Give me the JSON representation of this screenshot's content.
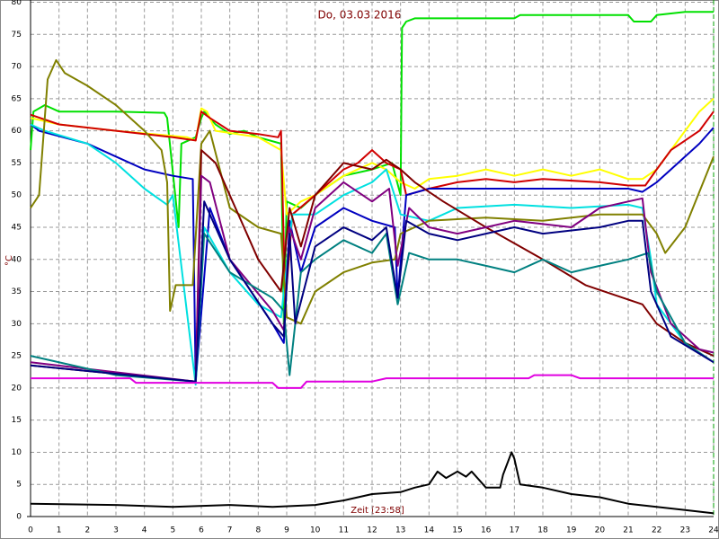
{
  "chart_data": {
    "type": "line",
    "title": "Do, 03.03.2016",
    "xlabel": "Zeit [23:58]",
    "ylabel": "°C",
    "xlim": [
      0,
      24
    ],
    "ylim": [
      0,
      80
    ],
    "xticks": [
      0,
      1,
      2,
      3,
      4,
      5,
      6,
      7,
      8,
      9,
      10,
      11,
      12,
      13,
      14,
      15,
      16,
      17,
      18,
      19,
      20,
      21,
      22,
      23,
      24
    ],
    "yticks": [
      0,
      5,
      10,
      15,
      20,
      25,
      30,
      35,
      40,
      45,
      50,
      55,
      60,
      65,
      70,
      75,
      80
    ],
    "grid": true,
    "series": [
      {
        "color": "#00e000",
        "x": [
          0,
          0.1,
          0.5,
          1,
          3,
          4.7,
          4.8,
          5.2,
          5.3,
          5.8,
          6,
          6.1,
          6.5,
          7,
          7.5,
          8,
          8.8,
          8.9,
          9,
          9.5,
          10,
          11,
          12,
          12.7,
          13,
          13.05,
          13.2,
          13.5,
          17,
          17.2,
          21,
          21.2,
          21.8,
          22,
          23,
          24
        ],
        "values": [
          57,
          63,
          64,
          63,
          63,
          62.8,
          62,
          45,
          58,
          59,
          62,
          63,
          61,
          59.5,
          60,
          59,
          58,
          30,
          49,
          48,
          50,
          53,
          54,
          55,
          50,
          76,
          77,
          77.5,
          77.5,
          78,
          78,
          77,
          77,
          78,
          78.5,
          78.5
        ]
      },
      {
        "color": "#ffff00",
        "x": [
          0,
          1,
          3,
          5.5,
          5.8,
          6,
          6.2,
          6.5,
          8,
          8.8,
          9,
          9.5,
          10,
          11,
          12,
          12.5,
          13,
          13.5,
          14,
          15,
          16,
          17,
          18,
          19,
          20,
          21,
          21.5,
          22,
          22.5,
          23,
          23.5,
          24
        ],
        "values": [
          62,
          61,
          60,
          59,
          58.5,
          63.5,
          63,
          60,
          59,
          57,
          47,
          49,
          50,
          53,
          55,
          54,
          52,
          51,
          52.5,
          53,
          54,
          53,
          54,
          53,
          54,
          52.5,
          52.5,
          54,
          57,
          60,
          63,
          65
        ]
      },
      {
        "color": "#d00000",
        "x": [
          0,
          1,
          3,
          5,
          5.8,
          6,
          6.3,
          7,
          8,
          8.7,
          8.8,
          8.95,
          9.2,
          10,
          11,
          11.5,
          12,
          12.5,
          13,
          13.2,
          14,
          15,
          16,
          17,
          18,
          20,
          21,
          21.6,
          22,
          22.5,
          23.5,
          24
        ],
        "values": [
          62.5,
          61,
          60,
          59,
          58.5,
          63,
          62,
          60,
          59.5,
          59,
          60,
          33,
          47,
          50,
          54,
          55,
          57,
          55,
          54,
          50,
          51,
          52,
          52.5,
          52,
          52.5,
          52,
          51.5,
          51.5,
          54,
          57,
          60,
          63
        ]
      },
      {
        "color": "#0000c0",
        "x": [
          0,
          0.3,
          2,
          3,
          4,
          5,
          5.7,
          5.8,
          6.3,
          7,
          8.5,
          8.9,
          9.1,
          9.5,
          10,
          11,
          12,
          12.8,
          12.9,
          13.2,
          14,
          20,
          21,
          21.5,
          22,
          22.5,
          23,
          23.5,
          24
        ],
        "values": [
          61,
          60,
          58,
          56,
          54,
          53,
          52.5,
          21,
          48,
          40,
          30,
          27,
          46,
          38,
          45,
          48,
          46,
          45,
          34,
          50,
          51,
          51,
          51,
          50.5,
          52,
          54,
          56,
          58,
          60.5
        ]
      },
      {
        "color": "#00e0e0",
        "x": [
          0,
          0.5,
          2,
          3,
          4,
          4.8,
          5,
          5.8,
          6.1,
          7,
          8,
          8.8,
          9.2,
          10,
          11,
          12,
          12.5,
          13,
          14,
          15,
          17,
          19,
          21,
          21.5,
          21.8,
          22,
          23,
          24
        ],
        "values": [
          61,
          60,
          58,
          55,
          51,
          48.5,
          50,
          20.5,
          45,
          38,
          33,
          31,
          47,
          47,
          50,
          52,
          54,
          47,
          46,
          48,
          48.5,
          48,
          48.5,
          48,
          40,
          33,
          27,
          25
        ]
      },
      {
        "color": "#808000",
        "x": [
          0,
          0.3,
          0.6,
          0.9,
          1.2,
          2,
          3,
          4,
          4.6,
          4.8,
          4.9,
          5.1,
          5.7,
          6,
          6.3,
          7,
          8,
          8.8,
          9,
          9.5,
          10,
          11,
          12,
          12.8,
          13,
          14,
          16,
          18,
          20,
          21.5,
          22,
          22.3,
          23,
          24
        ],
        "values": [
          48,
          50,
          68,
          71,
          69,
          67,
          64,
          60,
          57,
          52,
          32,
          36,
          36,
          58,
          60,
          48,
          45,
          44,
          31,
          30,
          35,
          38,
          39.5,
          40,
          44,
          46,
          46.5,
          46,
          47,
          47,
          44,
          41,
          45,
          56
        ]
      },
      {
        "color": "#800000",
        "x": [
          0,
          5.8,
          6,
          6.5,
          7.5,
          8,
          8.8,
          9.1,
          9.5,
          10,
          11,
          12,
          12.5,
          13,
          13.5,
          14.5,
          16,
          18,
          19.5,
          21.5,
          22,
          23,
          24
        ],
        "values": [
          23.5,
          21,
          57,
          55,
          45,
          40,
          35,
          48,
          42,
          50,
          55,
          54,
          55.5,
          54,
          52,
          49,
          45,
          40,
          36,
          33,
          30,
          27,
          25
        ]
      },
      {
        "color": "#800080",
        "x": [
          0,
          5.8,
          6,
          6.3,
          7,
          8.5,
          8.9,
          9.1,
          9.5,
          10,
          11,
          12,
          12.6,
          12.9,
          13.3,
          14,
          15,
          16,
          17,
          19,
          20,
          21,
          21.5,
          21.8,
          22.5,
          23.5,
          24
        ],
        "values": [
          24,
          21,
          53,
          52,
          40,
          32,
          29,
          45,
          40,
          48,
          52,
          49,
          51,
          39,
          48,
          45,
          44,
          45,
          46,
          45,
          48,
          49,
          49.5,
          38,
          30,
          26,
          25.5
        ]
      },
      {
        "color": "#008080",
        "x": [
          0,
          3,
          5.8,
          6.1,
          7,
          8.5,
          8.9,
          9.1,
          9.5,
          10,
          11,
          12,
          12.5,
          12.9,
          13.3,
          14,
          15,
          16,
          17,
          18,
          19,
          20,
          21,
          21.7,
          22,
          23,
          24
        ],
        "values": [
          25,
          22,
          21,
          44,
          38,
          34,
          32,
          22,
          38,
          40,
          43,
          41,
          44,
          33,
          41,
          40,
          40,
          39,
          38,
          40,
          38,
          39,
          40,
          41,
          35,
          27,
          24
        ]
      },
      {
        "color": "#000080",
        "x": [
          0,
          5.8,
          6.1,
          7,
          8.5,
          8.9,
          9.1,
          9.3,
          10,
          11,
          12,
          12.5,
          12.9,
          13.2,
          14,
          15,
          16,
          17,
          18,
          20,
          21,
          21.5,
          21.8,
          22.5,
          24
        ],
        "values": [
          23.5,
          21,
          49,
          40,
          30,
          28,
          44,
          30,
          42,
          45,
          43,
          45,
          34,
          46,
          44,
          43,
          44,
          45,
          44,
          45,
          46,
          46,
          35,
          28,
          24
        ]
      },
      {
        "color": "#e000e0",
        "x": [
          0,
          3.5,
          3.7,
          8.5,
          8.7,
          9.5,
          9.7,
          12,
          12.5,
          17.5,
          17.7,
          19,
          19.3,
          24
        ],
        "values": [
          21.5,
          21.5,
          20.8,
          20.8,
          20,
          20,
          21,
          21,
          21.5,
          21.5,
          22,
          22,
          21.5,
          21.5
        ]
      },
      {
        "color": "#000000",
        "x": [
          0,
          3,
          5,
          7,
          8.5,
          10,
          11,
          12,
          13,
          13.5,
          14,
          14.3,
          14.6,
          15,
          15.3,
          15.5,
          15.8,
          16,
          16.5,
          16.6,
          16.9,
          17,
          17.2,
          18,
          19,
          20,
          21,
          22,
          23,
          24
        ],
        "values": [
          2,
          1.8,
          1.5,
          1.8,
          1.5,
          1.8,
          2.5,
          3.5,
          3.8,
          4.5,
          5,
          7,
          6,
          7,
          6.2,
          7,
          5.5,
          4.5,
          4.5,
          6.5,
          10,
          9,
          5,
          4.5,
          3.5,
          3,
          2,
          1.5,
          1,
          0.5
        ]
      }
    ]
  }
}
